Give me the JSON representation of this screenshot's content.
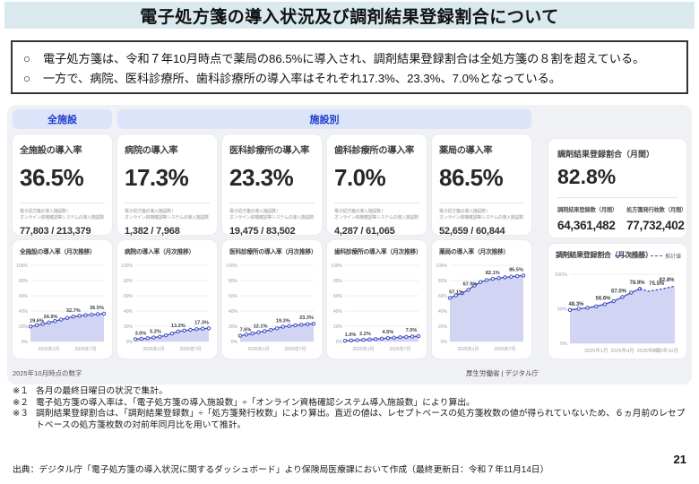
{
  "header": {
    "title": "電子処方箋の導入状況及び調剤結果登録割合について"
  },
  "summary": {
    "marker": "○",
    "lines": [
      "電子処方箋は、令和７年10月時点で薬局の86.5%に導入され、調剤結果登録割合は全処方箋の８割を超えている。",
      "一方で、病院、医科診療所、歯科診療所の導入率はそれぞれ17.3%、23.3%、7.0%となっている。"
    ]
  },
  "dashboard": {
    "group_labels": {
      "all": "全施設",
      "by_type": "施設別"
    },
    "stat_cards": [
      {
        "title": "全施設の導入率",
        "value": "36.5%",
        "sub1": "電子処方箋の導入施設数 /",
        "sub2": "オンライン資格確認等システムの導入施設数",
        "ratio": "77,803 / 213,379"
      },
      {
        "title": "病院の導入率",
        "value": "17.3%",
        "sub1": "電子処方箋の導入施設数 /",
        "sub2": "オンライン資格確認等システムの導入施設数",
        "ratio": "1,382 / 7,968"
      },
      {
        "title": "医科診療所の導入率",
        "value": "23.3%",
        "sub1": "電子処方箋の導入施設数 /",
        "sub2": "オンライン資格確認等システムの導入施設数",
        "ratio": "19,475 / 83,502"
      },
      {
        "title": "歯科診療所の導入率",
        "value": "7.0%",
        "sub1": "電子処方箋の導入施設数 /",
        "sub2": "オンライン資格確認等システムの導入施設数",
        "ratio": "4,287 / 61,065"
      },
      {
        "title": "薬局の導入率",
        "value": "86.5%",
        "sub1": "電子処方箋の導入施設数 /",
        "sub2": "オンライン資格確認等システムの導入施設数",
        "ratio": "52,659 / 60,844"
      }
    ],
    "registration_card": {
      "title": "調剤結果登録割合（月間）",
      "value": "82.8%",
      "left_label": "調剤結果登録数（月間）",
      "left_value": "64,361,482",
      "right_label": "処方箋発行枚数（月間）",
      "right_value": "77,732,402"
    },
    "as_of": "2025年10月時点の数字",
    "provider": "厚生労働省 | デジタル庁"
  },
  "footnotes": [
    {
      "marker": "※１",
      "text": "各月の最終日曜日の状況で集計。"
    },
    {
      "marker": "※２",
      "text": "電子処方箋の導入率は、「電子処方箋の導入施設数」÷「オンライン資格確認システム導入施設数」により算出。"
    },
    {
      "marker": "※３",
      "text": "調剤結果登録割合は、「調剤結果登録数」÷「処方箋発行枚数」により算出。直近の値は、レセプトベースの処方箋枚数の値が得られていないため、６ヵ月前のレセプトベースの処方箋枚数の対前年同月比を用いて推計。"
    }
  ],
  "source": "出典：デジタル庁「電子処方箋の導入状況に関するダッシュボード」より保険局医療課において作成（最終更新日：令和７年11月14日）",
  "page_number": "21",
  "colors": {
    "accent": "#3f4ec1",
    "area_fill": "#c9cef1",
    "grid": "#e8e8ec",
    "tick_text": "#9aa0a6",
    "label_text": "#3c4043",
    "titlebar_bg": "#d9e9ed",
    "pill_bg": "#dce4fa",
    "pill_text": "#1f3bcf",
    "panel_bg": "#f0f1f5"
  },
  "chart_data": [
    {
      "type": "area",
      "title": "全施設の導入率（月次推移）",
      "ylim": [
        0,
        100
      ],
      "yticks": [
        0,
        20,
        40,
        60,
        80,
        100
      ],
      "n": 13,
      "xticks": [
        {
          "index": 3,
          "label": "2025年1月"
        },
        {
          "index": 9,
          "label": "2025年7月"
        }
      ],
      "series": [
        {
          "name": "導入率",
          "style": "solid",
          "start": 0,
          "values": [
            19.6,
            21.2,
            23.0,
            24.9,
            26.8,
            28.8,
            30.8,
            32.7,
            33.7,
            34.6,
            35.3,
            35.9,
            36.5
          ]
        }
      ],
      "point_labels": [
        {
          "index": 0,
          "text": "19.6%",
          "dx": 7
        },
        {
          "index": 3,
          "text": "24.9%",
          "dx": 2
        },
        {
          "index": 7,
          "text": "32.7%",
          "dx": 0
        },
        {
          "index": 12,
          "text": "36.5%",
          "dx": -8
        }
      ]
    },
    {
      "type": "area",
      "title": "病院の導入率（月次推移）",
      "ylim": [
        0,
        100
      ],
      "yticks": [
        0,
        20,
        40,
        60,
        80,
        100
      ],
      "n": 13,
      "xticks": [
        {
          "index": 3,
          "label": "2025年1月"
        },
        {
          "index": 9,
          "label": "2025年7月"
        }
      ],
      "series": [
        {
          "name": "導入率",
          "style": "solid",
          "start": 0,
          "values": [
            3.0,
            3.6,
            4.3,
            5.2,
            6.3,
            8.0,
            10.5,
            13.2,
            14.3,
            15.3,
            16.1,
            16.8,
            17.3
          ]
        }
      ],
      "point_labels": [
        {
          "index": 0,
          "text": "3.0%",
          "dx": 6
        },
        {
          "index": 3,
          "text": "5.2%",
          "dx": 2
        },
        {
          "index": 7,
          "text": "13.2%",
          "dx": 0
        },
        {
          "index": 12,
          "text": "17.3%",
          "dx": -8
        }
      ]
    },
    {
      "type": "area",
      "title": "医科診療所の導入率（月次推移）",
      "ylim": [
        0,
        100
      ],
      "yticks": [
        0,
        20,
        40,
        60,
        80,
        100
      ],
      "n": 13,
      "xticks": [
        {
          "index": 3,
          "label": "2025年1月"
        },
        {
          "index": 9,
          "label": "2025年7月"
        }
      ],
      "series": [
        {
          "name": "導入率",
          "style": "solid",
          "start": 0,
          "values": [
            7.6,
            9.0,
            10.5,
            12.1,
            13.6,
            15.2,
            17.3,
            19.3,
            20.3,
            21.2,
            22.0,
            22.7,
            23.3
          ]
        }
      ],
      "point_labels": [
        {
          "index": 0,
          "text": "7.6%",
          "dx": 6
        },
        {
          "index": 3,
          "text": "12.1%",
          "dx": 2
        },
        {
          "index": 7,
          "text": "19.3%",
          "dx": 0
        },
        {
          "index": 12,
          "text": "23.3%",
          "dx": -8
        }
      ]
    },
    {
      "type": "area",
      "title": "歯科診療所の導入率（月次推移）",
      "ylim": [
        0,
        100
      ],
      "yticks": [
        0,
        20,
        40,
        60,
        80,
        100
      ],
      "n": 13,
      "xticks": [
        {
          "index": 3,
          "label": "2025年1月"
        },
        {
          "index": 9,
          "label": "2025年7月"
        }
      ],
      "series": [
        {
          "name": "導入率",
          "style": "solid",
          "start": 0,
          "values": [
            1.0,
            1.4,
            1.8,
            2.2,
            2.7,
            3.2,
            3.8,
            4.5,
            5.0,
            5.5,
            6.0,
            6.5,
            7.0
          ]
        }
      ],
      "point_labels": [
        {
          "index": 0,
          "text": "1.0%",
          "dx": 6
        },
        {
          "index": 3,
          "text": "2.2%",
          "dx": 2
        },
        {
          "index": 7,
          "text": "4.5%",
          "dx": 0
        },
        {
          "index": 12,
          "text": "7.0%",
          "dx": -8
        }
      ]
    },
    {
      "type": "area",
      "title": "薬局の導入率（月次推移）",
      "ylim": [
        0,
        100
      ],
      "yticks": [
        0,
        20,
        40,
        60,
        80,
        100
      ],
      "n": 13,
      "xticks": [
        {
          "index": 3,
          "label": "2025年1月"
        },
        {
          "index": 9,
          "label": "2025年7月"
        }
      ],
      "series": [
        {
          "name": "導入率",
          "style": "solid",
          "start": 0,
          "values": [
            57.1,
            60.5,
            63.5,
            67.9,
            73.5,
            78.0,
            80.5,
            82.1,
            83.2,
            84.2,
            85.0,
            85.8,
            86.5
          ]
        }
      ],
      "point_labels": [
        {
          "index": 0,
          "text": "57.1%",
          "dx": 7
        },
        {
          "index": 3,
          "text": "67.9%",
          "dx": 2
        },
        {
          "index": 7,
          "text": "82.1%",
          "dx": 0
        },
        {
          "index": 12,
          "text": "86.5%",
          "dx": -8
        }
      ]
    },
    {
      "type": "area",
      "title": "調剤結果登録割合（月次推移）",
      "ylim": [
        0,
        100
      ],
      "yticks": [
        0,
        50,
        100
      ],
      "n": 13,
      "legend": true,
      "xticks": [
        {
          "index": 3,
          "label": "2025年1月"
        },
        {
          "index": 6,
          "label": "2025年4月"
        },
        {
          "index": 9,
          "label": "2025年7月"
        },
        {
          "index": 12,
          "label": "2025年10月"
        }
      ],
      "series": [
        {
          "name": "実測値",
          "style": "solid",
          "start": 0,
          "values": [
            48.3,
            50.0,
            51.5,
            53.5,
            56.6,
            61.0,
            67.0,
            73.5,
            78.9
          ]
        },
        {
          "name": "推計値",
          "style": "dashed",
          "start": 8,
          "values": [
            78.9,
            75.5,
            77.5,
            80.0,
            82.8
          ]
        }
      ],
      "point_labels": [
        {
          "index": 0,
          "text": "48.3%",
          "dx": 7
        },
        {
          "index": 4,
          "text": "56.6%",
          "dx": -2
        },
        {
          "index": 6,
          "text": "67.0%",
          "dx": -4
        },
        {
          "index": 8,
          "text": "78.9%",
          "dx": -3
        },
        {
          "index": 9,
          "text": "75.5%",
          "dx": 9,
          "dy": -2
        },
        {
          "index": 12,
          "text": "82.8%",
          "dx": -9
        }
      ]
    }
  ]
}
